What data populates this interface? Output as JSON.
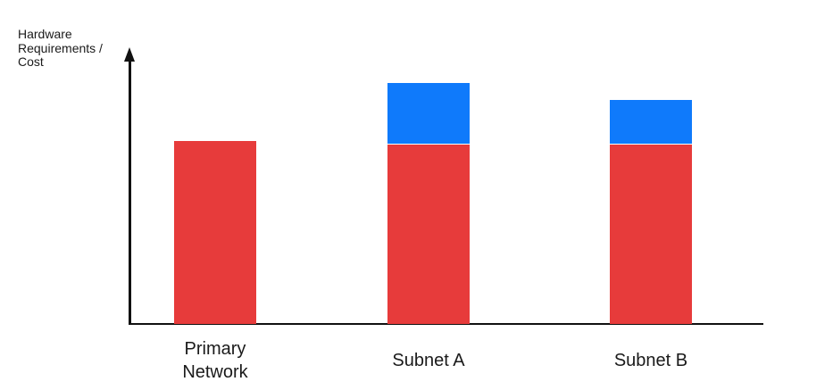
{
  "colors": {
    "red": "#E73B3B",
    "blue": "#0F7AFB",
    "axis": "#111111",
    "text": "#1A1A1A",
    "background": "#FFFFFF"
  },
  "axes": {
    "y_label": "Hardware\nRequirements /\nCost"
  },
  "chart_data": {
    "type": "bar",
    "stacked": true,
    "title": "",
    "xlabel": "",
    "ylabel": "Hardware Requirements / Cost",
    "categories": [
      "Primary Network",
      "Subnet A",
      "Subnet B"
    ],
    "series": [
      {
        "name": "red",
        "color": "#E73B3B",
        "values": [
          66,
          65,
          65
        ]
      },
      {
        "name": "blue",
        "color": "#0F7AFB",
        "values": [
          0,
          22,
          16
        ]
      }
    ],
    "units": "relative (no numeric scale shown on axis)",
    "ylim": [
      0,
      100
    ],
    "y_axis_numeric_ticks": false,
    "grid": false,
    "legend": "none",
    "notes": "Qualitative stacked bar chart. All three bars share an equal red base; Subnet A and Subnet B add a blue segment on top, Subnet A's blue segment being taller than Subnet B's."
  }
}
